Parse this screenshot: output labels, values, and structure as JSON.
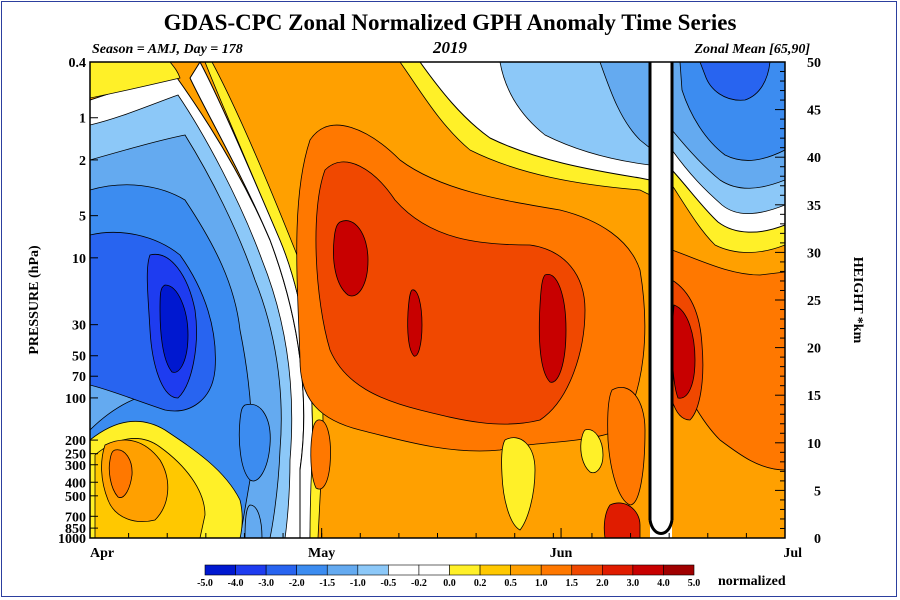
{
  "chart_data": {
    "type": "heatmap",
    "title": "GDAS-CPC Zonal Normalized GPH Anomaly Time Series",
    "subtitle_left": "Season = AMJ, Day = 178",
    "subtitle_center": "2019",
    "subtitle_right": "Zonal Mean [65,90]",
    "ylabel": "PRESSURE (hPa)",
    "y2label": "HEIGHT *km",
    "x_ticks": [
      "Apr",
      "May",
      "Jun",
      "Jul"
    ],
    "x_range_days": [
      1,
      91
    ],
    "y_ticks": [
      "0.4",
      "1",
      "2",
      "5",
      "10",
      "30",
      "50",
      "70",
      "100",
      "200",
      "250",
      "300",
      "400",
      "500",
      "700",
      "850",
      "1000"
    ],
    "y_tick_values": [
      0.4,
      1,
      2,
      5,
      10,
      30,
      50,
      70,
      100,
      200,
      250,
      300,
      400,
      500,
      700,
      850,
      1000
    ],
    "y_scale": "log",
    "y_range": [
      1000,
      0.4
    ],
    "y2_ticks": [
      "0",
      "5",
      "10",
      "15",
      "20",
      "25",
      "30",
      "35",
      "40",
      "45",
      "50"
    ],
    "y2_range": [
      0,
      50
    ],
    "colorbar": {
      "levels": [
        "-5.0",
        "-4.0",
        "-3.0",
        "-2.0",
        "-1.5",
        "-1.0",
        "-0.5",
        "-0.2",
        "0.0",
        "0.2",
        "0.5",
        "1.0",
        "1.5",
        "2.0",
        "3.0",
        "4.0",
        "5.0"
      ],
      "colors": [
        "#0018d0",
        "#1e3cf0",
        "#2864f0",
        "#3c8cf0",
        "#64aaf0",
        "#8cc8f8",
        "#ffffff",
        "#ffffff",
        "#fff028",
        "#ffc800",
        "#ffa000",
        "#ff7800",
        "#f04800",
        "#e01c00",
        "#c80000",
        "#a00000"
      ],
      "label": "normalized"
    },
    "missing_data_day": 79
  }
}
